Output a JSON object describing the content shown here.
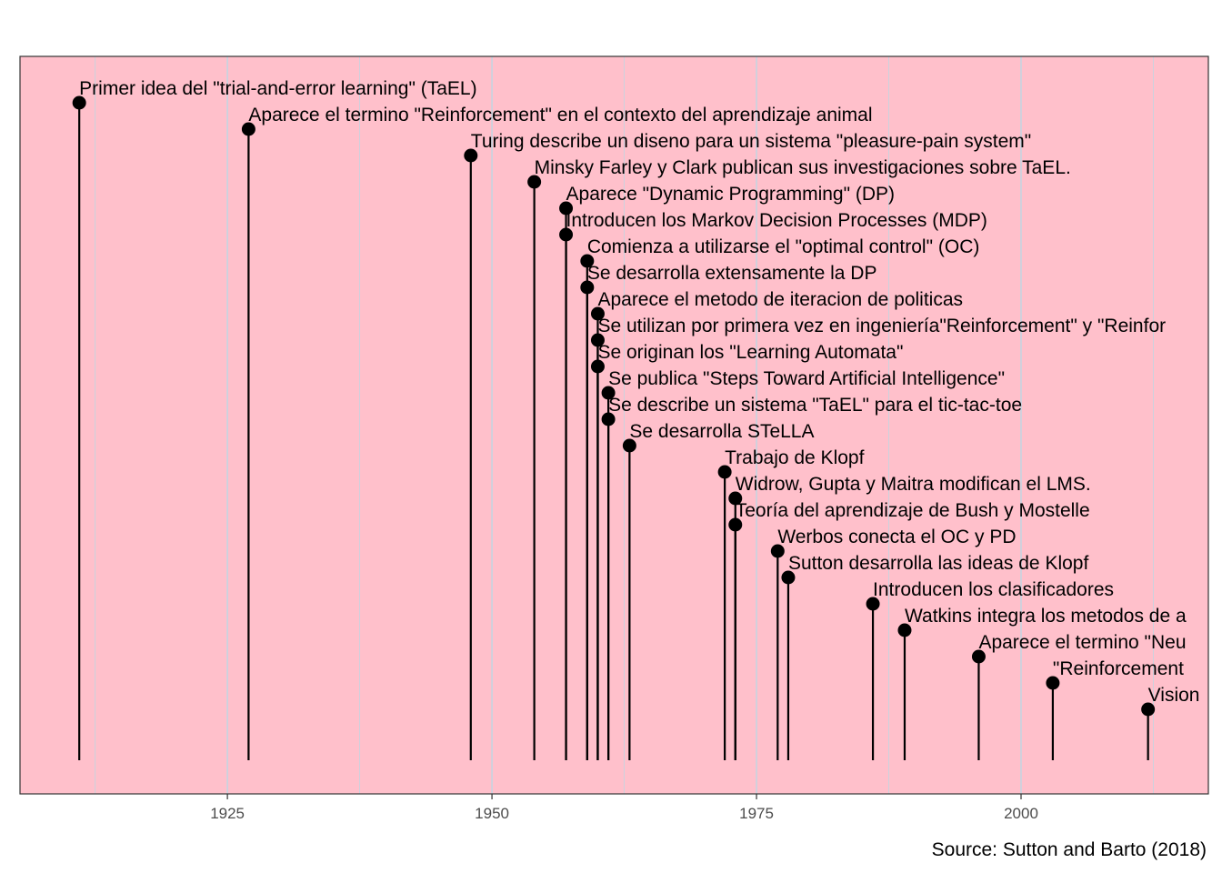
{
  "chart_data": {
    "type": "timeline",
    "title": "",
    "xlabel": "",
    "ylabel": "",
    "xlim": [
      1905.4,
      2017.7
    ],
    "x_ticks": [
      1925,
      1950,
      1975,
      2000
    ],
    "x_tick_labels": [
      "1925",
      "1950",
      "1975",
      "2000"
    ],
    "grid": true,
    "caption": "Source: Sutton and Barto (2018)",
    "colors": {
      "panel": "#ffc0cb",
      "grid": "#c6d4e0",
      "stem": "#000000",
      "point": "#000000",
      "axis_text": "#4d4d4d"
    },
    "events": [
      {
        "year": 1911,
        "label": "Primer idea del \"trial-and-error learning\" (TaEL)"
      },
      {
        "year": 1927,
        "label": "Aparece el termino \"Reinforcement\" en el contexto del aprendizaje animal"
      },
      {
        "year": 1948,
        "label": "Turing describe un diseno para un sistema \"pleasure-pain system\""
      },
      {
        "year": 1954,
        "label": "Minsky Farley y Clark publican sus investigaciones sobre TaEL."
      },
      {
        "year": 1957,
        "label": "Aparece \"Dynamic Programming\" (DP)"
      },
      {
        "year": 1957,
        "label": "Introducen los Markov Decision Processes (MDP)"
      },
      {
        "year": 1959,
        "label": "Comienza a utilizarse el \"optimal control\" (OC)"
      },
      {
        "year": 1959,
        "label": "Se desarrolla extensamente la DP"
      },
      {
        "year": 1960,
        "label": "Aparece el metodo de iteracion de politicas"
      },
      {
        "year": 1960,
        "label": "Se utilizan por primera vez en ingeniería\"Reinforcement\" y \"Reinfor"
      },
      {
        "year": 1960,
        "label": "Se originan los \"Learning Automata\""
      },
      {
        "year": 1961,
        "label": "Se publica \"Steps Toward Artificial Intelligence\""
      },
      {
        "year": 1961,
        "label": "Se describe un sistema \"TaEL\" para el tic-tac-toe"
      },
      {
        "year": 1963,
        "label": "Se desarrolla STeLLA"
      },
      {
        "year": 1972,
        "label": "Trabajo de Klopf"
      },
      {
        "year": 1973,
        "label": "Widrow, Gupta y Maitra modifican el LMS."
      },
      {
        "year": 1973,
        "label": "Teoría del aprendizaje de Bush y Mostelle"
      },
      {
        "year": 1977,
        "label": "Werbos conecta el OC y PD"
      },
      {
        "year": 1978,
        "label": "Sutton desarrolla las ideas de Klopf"
      },
      {
        "year": 1986,
        "label": "Introducen los clasificadores"
      },
      {
        "year": 1989,
        "label": "Watkins integra los metodos de a"
      },
      {
        "year": 1996,
        "label": "Aparece el termino \"Neu"
      },
      {
        "year": 2003,
        "label": "\"Reinforcement"
      },
      {
        "year": 2012,
        "label": "Vision"
      }
    ]
  }
}
